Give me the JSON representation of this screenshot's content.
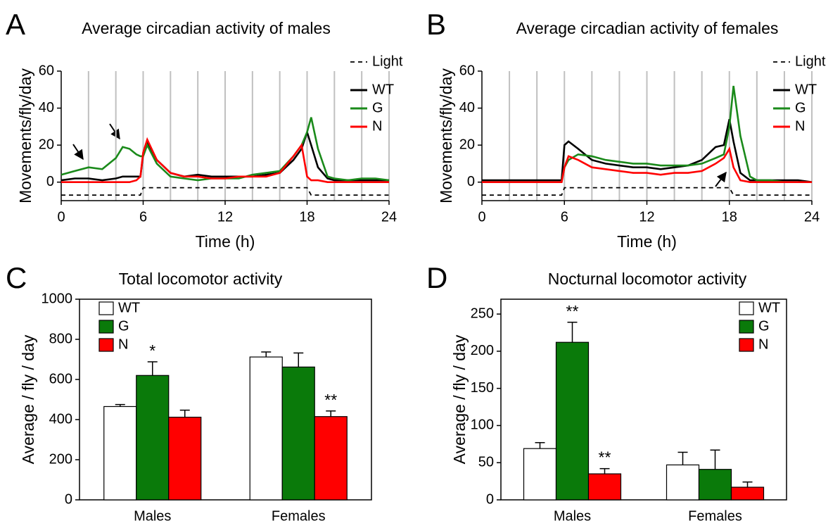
{
  "chart_data": [
    {
      "type": "line",
      "label": "A",
      "title": "Average circadian activity of males",
      "xlabel": "Time (h)",
      "ylabel": "Movements/fly/day",
      "x": [
        0,
        1,
        2,
        3,
        4,
        4.5,
        5,
        5.5,
        5.8,
        6,
        6.3,
        7,
        8,
        9,
        10,
        11,
        12,
        13,
        14,
        15,
        16,
        17,
        17.6,
        18,
        18.3,
        18.8,
        19.5,
        20,
        21,
        22,
        23,
        24
      ],
      "series": [
        {
          "name": "Light",
          "color": "#000000",
          "dash": true,
          "values": [
            -7,
            -7,
            -7,
            -7,
            -7,
            -7,
            -7,
            -7,
            -7,
            -3,
            -3,
            -3,
            -3,
            -3,
            -3,
            -3,
            -3,
            -3,
            -3,
            -3,
            -3,
            -3,
            -3,
            -3,
            -7,
            -7,
            -7,
            -7,
            -7,
            -7,
            -7,
            -7
          ]
        },
        {
          "name": "WT",
          "color": "#000000",
          "values": [
            1,
            2,
            2,
            1,
            2,
            3,
            3,
            3,
            3,
            15,
            21,
            12,
            5,
            3,
            4,
            3,
            3,
            3,
            3,
            4,
            5,
            12,
            18,
            27,
            20,
            8,
            2,
            1,
            1,
            1,
            1,
            1
          ]
        },
        {
          "name": "G",
          "color": "#1a8a1a",
          "values": [
            4,
            6,
            8,
            7,
            13,
            19,
            18,
            15,
            14,
            14,
            20,
            10,
            3,
            2,
            1,
            2,
            2,
            2,
            4,
            5,
            6,
            14,
            20,
            27,
            35,
            18,
            3,
            2,
            1,
            2,
            2,
            1
          ]
        },
        {
          "name": "N",
          "color": "#ff0000",
          "values": [
            0,
            0,
            0,
            0,
            0,
            0,
            0,
            1,
            3,
            16,
            23,
            12,
            5,
            3,
            3,
            2,
            2,
            3,
            3,
            3,
            5,
            14,
            20,
            3,
            1,
            1,
            0,
            0,
            0,
            0,
            0,
            0
          ]
        }
      ],
      "xlim": [
        0,
        24
      ],
      "xticks": [
        0,
        6,
        12,
        18,
        24
      ],
      "xgrid": [
        2,
        4,
        6,
        8,
        10,
        12,
        14,
        16,
        18,
        20,
        22,
        24
      ],
      "ylim": [
        -10,
        60
      ],
      "yticks": [
        0,
        20,
        40,
        60
      ],
      "legend": "upper right"
    },
    {
      "type": "line",
      "label": "B",
      "title": "Average circadian activity of females",
      "xlabel": "Time (h)",
      "ylabel": "Movements/fly/day",
      "x": [
        0,
        1,
        2,
        3,
        4,
        4.5,
        5,
        5.5,
        5.8,
        6,
        6.3,
        7,
        8,
        9,
        10,
        11,
        12,
        13,
        14,
        15,
        16,
        17,
        17.6,
        18,
        18.3,
        18.8,
        19.5,
        20,
        21,
        22,
        23,
        24
      ],
      "series": [
        {
          "name": "Light",
          "color": "#000000",
          "dash": true,
          "values": [
            -7,
            -7,
            -7,
            -7,
            -7,
            -7,
            -7,
            -7,
            -7,
            -3,
            -3,
            -3,
            -3,
            -3,
            -3,
            -3,
            -3,
            -3,
            -3,
            -3,
            -3,
            -3,
            -3,
            -3,
            -7,
            -7,
            -7,
            -7,
            -7,
            -7,
            -7,
            -7
          ]
        },
        {
          "name": "WT",
          "color": "#000000",
          "values": [
            1,
            1,
            1,
            1,
            1,
            1,
            1,
            1,
            1,
            20,
            22,
            18,
            12,
            10,
            9,
            8,
            8,
            7,
            8,
            9,
            12,
            19,
            20,
            34,
            22,
            5,
            1,
            1,
            1,
            1,
            1,
            0
          ]
        },
        {
          "name": "G",
          "color": "#1a8a1a",
          "values": [
            0,
            0,
            0,
            0,
            0,
            0,
            0,
            0,
            0,
            8,
            12,
            15,
            14,
            12,
            11,
            10,
            10,
            9,
            9,
            9,
            10,
            13,
            15,
            30,
            52,
            25,
            3,
            1,
            1,
            0,
            0,
            0
          ]
        },
        {
          "name": "N",
          "color": "#ff0000",
          "values": [
            0,
            0,
            0,
            0,
            0,
            0,
            0,
            0,
            0,
            8,
            14,
            12,
            8,
            7,
            6,
            5,
            5,
            4,
            5,
            5,
            6,
            10,
            13,
            18,
            8,
            1,
            0,
            0,
            0,
            0,
            0,
            0
          ]
        }
      ],
      "xlim": [
        0,
        24
      ],
      "xticks": [
        0,
        6,
        12,
        18,
        24
      ],
      "xgrid": [
        2,
        4,
        6,
        8,
        10,
        12,
        14,
        16,
        18,
        20,
        22,
        24
      ],
      "ylim": [
        -10,
        60
      ],
      "yticks": [
        0,
        20,
        40,
        60
      ],
      "legend": "upper right"
    },
    {
      "type": "bar",
      "label": "C",
      "title": "Total locomotor activity",
      "ylabel": "Average / fly / day",
      "categories": [
        "Males",
        "Females"
      ],
      "series": [
        {
          "name": "WT",
          "color": "#ffffff",
          "values": [
            465,
            712
          ],
          "errors": [
            10,
            25
          ]
        },
        {
          "name": "G",
          "color": "#0a7a0a",
          "values": [
            620,
            662
          ],
          "errors": [
            68,
            70
          ],
          "significance": [
            "*",
            null
          ]
        },
        {
          "name": "N",
          "color": "#ff0000",
          "values": [
            412,
            415
          ],
          "errors": [
            35,
            28
          ],
          "significance": [
            null,
            "**"
          ]
        }
      ],
      "ylim": [
        0,
        1000
      ],
      "yticks": [
        0,
        200,
        400,
        600,
        800,
        1000
      ],
      "legend": "upper left"
    },
    {
      "type": "bar",
      "label": "D",
      "title": "Nocturnal locomotor activity",
      "ylabel": "Average / fly / day",
      "categories": [
        "Males",
        "Females"
      ],
      "series": [
        {
          "name": "WT",
          "color": "#ffffff",
          "values": [
            69,
            47
          ],
          "errors": [
            8,
            17
          ]
        },
        {
          "name": "G",
          "color": "#0a7a0a",
          "values": [
            212,
            41
          ],
          "errors": [
            27,
            26
          ],
          "significance": [
            "**",
            null
          ]
        },
        {
          "name": "N",
          "color": "#ff0000",
          "values": [
            35,
            17
          ],
          "errors": [
            7,
            7
          ],
          "significance": [
            "**",
            null
          ]
        }
      ],
      "ylim": [
        0,
        270
      ],
      "yticks": [
        0,
        50,
        100,
        150,
        200,
        250
      ],
      "legend": "upper right"
    }
  ]
}
